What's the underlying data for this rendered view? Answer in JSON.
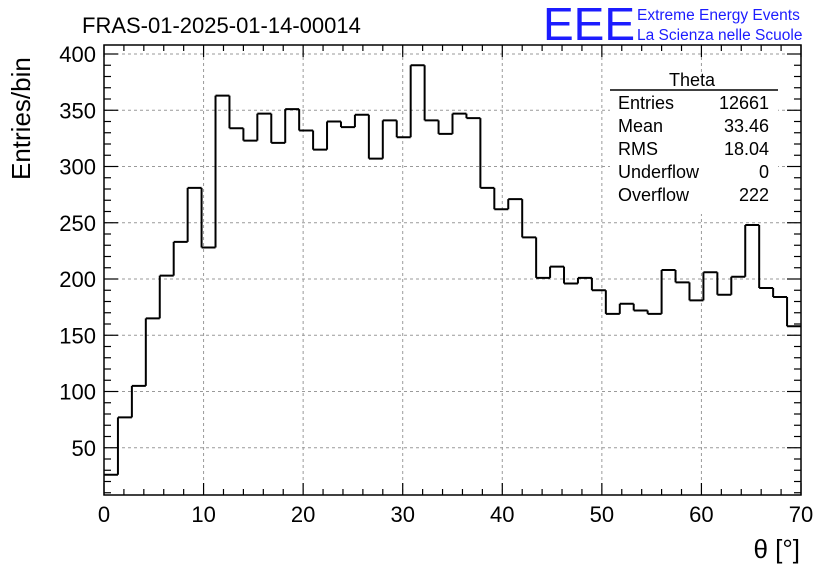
{
  "header": {
    "run_title": "FRAS-01-2025-01-14-00014",
    "logo_letters": "EEE",
    "logo_line1": "Extreme Energy Events",
    "logo_line2": "La Scienza nelle Scuole"
  },
  "stats_box": {
    "title": "Theta",
    "rows": [
      {
        "label": "Entries",
        "value": "12661"
      },
      {
        "label": "Mean",
        "value": "33.46"
      },
      {
        "label": "RMS",
        "value": "18.04"
      },
      {
        "label": "Underflow",
        "value": "0"
      },
      {
        "label": "Overflow",
        "value": "222"
      }
    ]
  },
  "chart_data": {
    "type": "bar",
    "title": "FRAS-01-2025-01-14-00014",
    "xlabel": "θ [°]",
    "ylabel": "Entries/bin",
    "xlim": [
      0,
      70
    ],
    "ylim": [
      8,
      408
    ],
    "grid": true,
    "x_ticks": [
      0,
      10,
      20,
      30,
      40,
      50,
      60,
      70
    ],
    "y_ticks": [
      50,
      100,
      150,
      200,
      250,
      300,
      350,
      400
    ],
    "bin_width": 1.4,
    "bin_low_edges": [
      0,
      1.4,
      2.8,
      4.2,
      5.6,
      7.0,
      8.4,
      9.8,
      11.2,
      12.6,
      14.0,
      15.4,
      16.8,
      18.2,
      19.6,
      21.0,
      22.4,
      23.8,
      25.2,
      26.6,
      28.0,
      29.4,
      30.8,
      32.2,
      33.6,
      35.0,
      36.4,
      37.8,
      39.2,
      40.6,
      42.0,
      43.4,
      44.8,
      46.2,
      47.6,
      49.0,
      50.4,
      51.8,
      53.2,
      54.6,
      56.0,
      57.4,
      58.8,
      60.2,
      61.6,
      63.0,
      64.4,
      65.8,
      67.2,
      68.6
    ],
    "values": [
      26,
      77,
      105,
      165,
      203,
      233,
      281,
      228,
      363,
      334,
      323,
      347,
      321,
      351,
      332,
      315,
      340,
      335,
      346,
      307,
      341,
      326,
      390,
      341,
      329,
      347,
      343,
      281,
      262,
      271,
      237,
      201,
      211,
      196,
      201,
      190,
      169,
      178,
      172,
      169,
      208,
      197,
      181,
      206,
      186,
      202,
      248,
      192,
      184,
      158
    ]
  }
}
